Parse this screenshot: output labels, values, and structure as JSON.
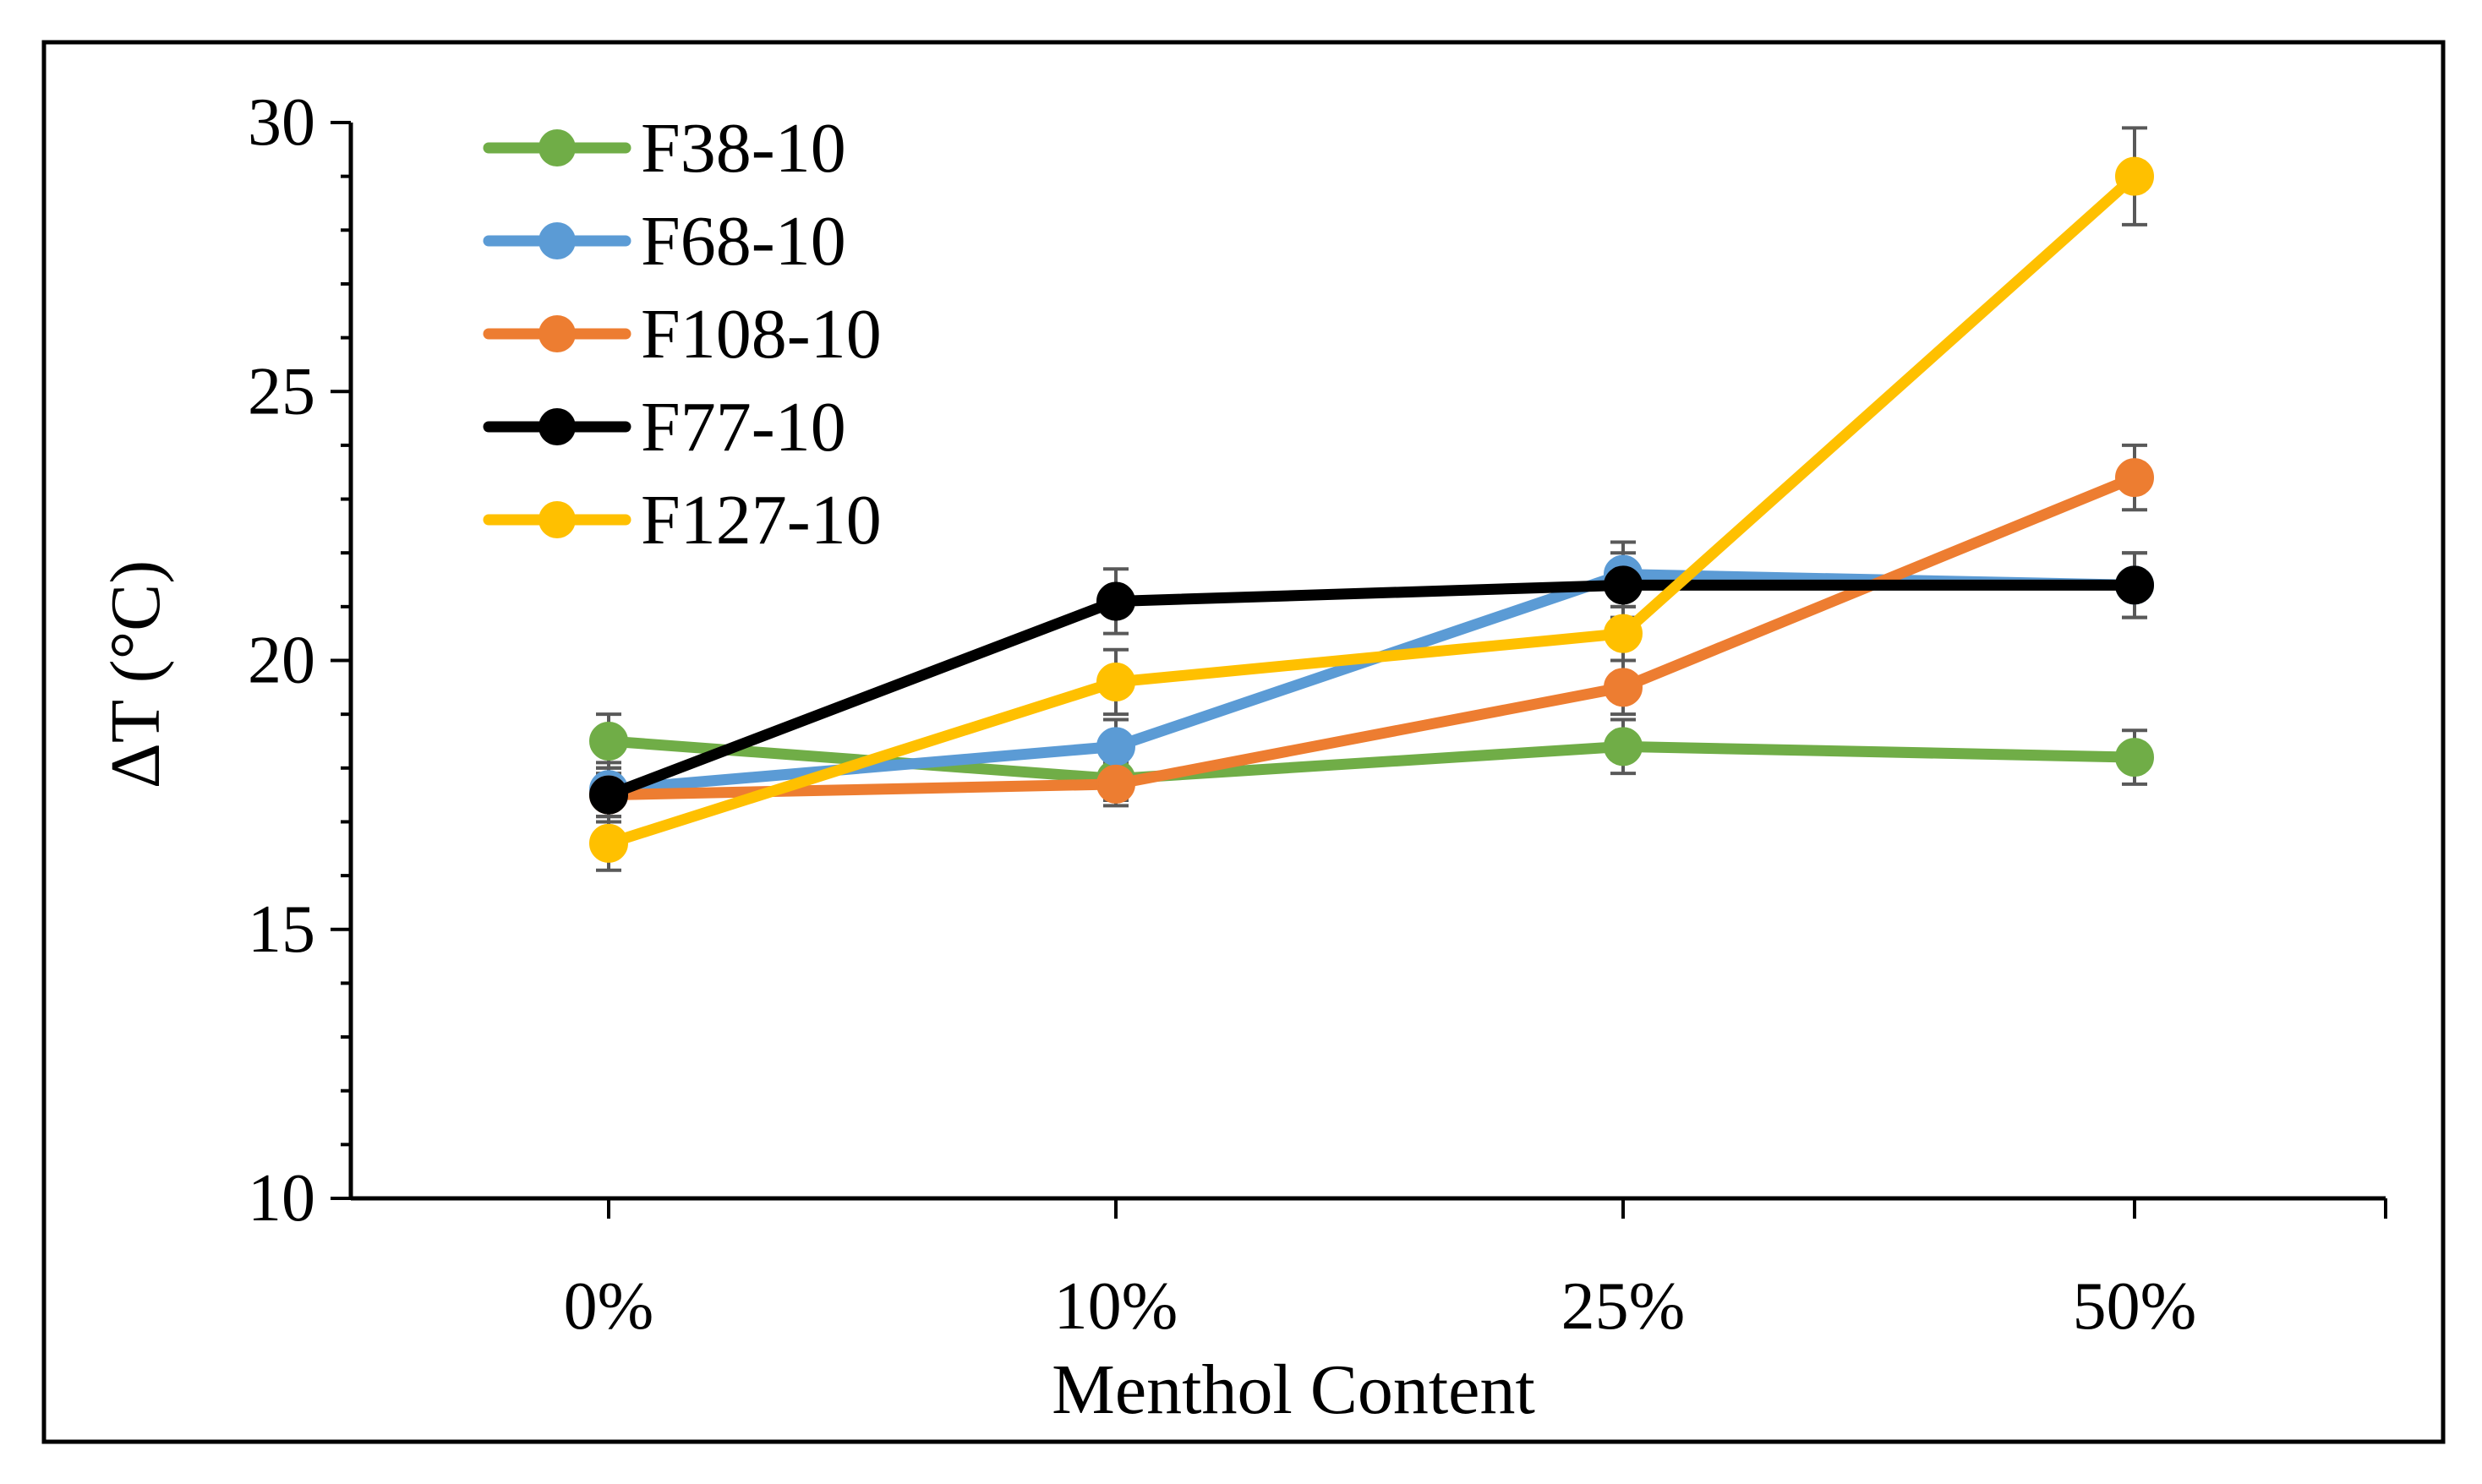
{
  "chart_data": {
    "type": "line",
    "title": "",
    "xlabel": "Menthol Content",
    "ylabel": "ΔT (°C)",
    "categories": [
      "0%",
      "10%",
      "25%",
      "50%"
    ],
    "ylim": [
      10,
      30
    ],
    "yticks": [
      10,
      15,
      20,
      25,
      30
    ],
    "grid": false,
    "legend_position": "top-left",
    "series": [
      {
        "name": "F38-10",
        "color": "#70ad47",
        "values": [
          18.5,
          17.8,
          18.4,
          18.2
        ],
        "errors": [
          0.5,
          0.4,
          0.5,
          0.5
        ]
      },
      {
        "name": "F68-10",
        "color": "#5b9bd5",
        "values": [
          17.6,
          18.4,
          21.6,
          21.4
        ],
        "errors": [
          0.5,
          0.5,
          0.6,
          0.6
        ]
      },
      {
        "name": "F108-10",
        "color": "#ed7d31",
        "values": [
          17.5,
          17.7,
          19.5,
          23.4
        ],
        "errors": [
          0.4,
          0.4,
          0.5,
          0.6
        ]
      },
      {
        "name": "F77-10",
        "color": "#000000",
        "values": [
          17.5,
          21.1,
          21.4,
          21.4
        ],
        "errors": [
          0.5,
          0.6,
          0.6,
          0.6
        ]
      },
      {
        "name": "F127-10",
        "color": "#ffc000",
        "values": [
          16.6,
          19.6,
          20.5,
          29.0
        ],
        "errors": [
          0.5,
          0.6,
          0.5,
          0.9
        ]
      }
    ]
  }
}
